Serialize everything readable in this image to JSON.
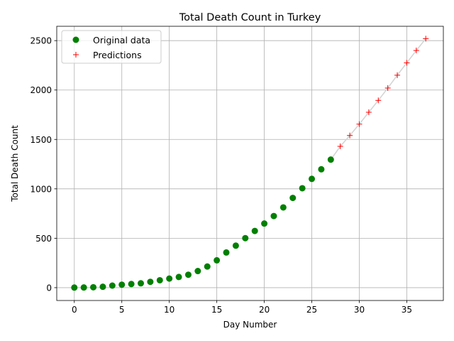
{
  "chart_data": {
    "type": "scatter",
    "title": "Total Death Count in Turkey",
    "xlabel": "Day Number",
    "ylabel": "Total Death Count",
    "xlim": [
      -1.85,
      38.85
    ],
    "ylim": [
      -130,
      2645
    ],
    "xticks": [
      0,
      5,
      10,
      15,
      20,
      25,
      30,
      35
    ],
    "yticks": [
      0,
      500,
      1000,
      1500,
      2000,
      2500
    ],
    "grid": true,
    "legend_position": "top-left",
    "series": [
      {
        "name": "Original data",
        "marker": "circle",
        "color": "#008000",
        "x": [
          0,
          1,
          2,
          3,
          4,
          5,
          6,
          7,
          8,
          9,
          10,
          11,
          12,
          13,
          14,
          15,
          16,
          17,
          18,
          19,
          20,
          21,
          22,
          23,
          24,
          25,
          26,
          27
        ],
        "y": [
          1,
          2,
          4,
          9,
          21,
          30,
          37,
          44,
          59,
          75,
          92,
          108,
          131,
          168,
          214,
          277,
          356,
          425,
          501,
          574,
          649,
          725,
          812,
          908,
          1006,
          1101,
          1198,
          1296
        ]
      },
      {
        "name": "Predictions",
        "marker": "plus",
        "color": "#ff0000",
        "line_color": "#d3d3d3",
        "x": [
          27,
          28,
          29,
          30,
          31,
          32,
          33,
          34,
          35,
          36,
          37
        ],
        "y": [
          1296,
          1430,
          1540,
          1655,
          1775,
          1895,
          2020,
          2150,
          2275,
          2400,
          2520
        ]
      }
    ]
  }
}
